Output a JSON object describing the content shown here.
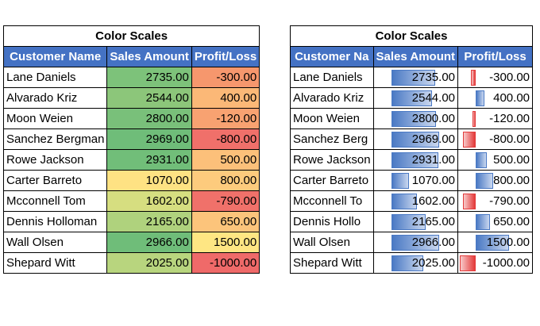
{
  "left_table": {
    "title": "Color Scales",
    "headers": [
      "Customer Name",
      "Sales Amount",
      "Profit/Loss"
    ],
    "rows": [
      {
        "name": "Lane Daniels",
        "sales": "2735.00",
        "profit": "-300.00",
        "sales_color": "#7dc27a",
        "profit_color": "#f6976d"
      },
      {
        "name": "Alvarado Kriz",
        "sales": "2544.00",
        "profit": "400.00",
        "sales_color": "#8cc67a",
        "profit_color": "#fbb877"
      },
      {
        "name": "Moon Weien",
        "sales": "2800.00",
        "profit": "-120.00",
        "sales_color": "#79c07a",
        "profit_color": "#f8a271"
      },
      {
        "name": "Sanchez Bergman",
        "sales": "2969.00",
        "profit": "-800.00",
        "sales_color": "#6fbd79",
        "profit_color": "#f0706a"
      },
      {
        "name": "Rowe Jackson",
        "sales": "2931.00",
        "profit": "500.00",
        "sales_color": "#71be79",
        "profit_color": "#fcc07a"
      },
      {
        "name": "Carter Barreto",
        "sales": "1070.00",
        "profit": "800.00",
        "sales_color": "#fee283",
        "profit_color": "#fdcb7d"
      },
      {
        "name": "Mcconnell Tom",
        "sales": "1602.00",
        "profit": "-790.00",
        "sales_color": "#d6de80",
        "profit_color": "#f0716a"
      },
      {
        "name": "Dennis Holloman",
        "sales": "2165.00",
        "profit": "650.00",
        "sales_color": "#afd27d",
        "profit_color": "#fcc47b"
      },
      {
        "name": "Wall Olsen",
        "sales": "2966.00",
        "profit": "1500.00",
        "sales_color": "#6fbd79",
        "profit_color": "#fee683"
      },
      {
        "name": "Shepard Witt",
        "sales": "2025.00",
        "profit": "-1000.00",
        "sales_color": "#b8d57e",
        "profit_color": "#ef6a69"
      }
    ]
  },
  "right_table": {
    "title": "Color Scales",
    "headers": [
      "Customer Na",
      "Sales Amount",
      "Profit/Loss"
    ],
    "rows": [
      {
        "name": "Lane Daniels",
        "sales": "2735.00",
        "profit": "-300.00",
        "sales_fill": 0.88,
        "profit_fill": -0.3
      },
      {
        "name": "Alvarado Kriz",
        "sales": "2544.00",
        "profit": "400.00",
        "sales_fill": 0.82,
        "profit_fill": 0.27
      },
      {
        "name": "Moon Weien",
        "sales": "2800.00",
        "profit": "-120.00",
        "sales_fill": 0.9,
        "profit_fill": -0.12
      },
      {
        "name": "Sanchez Berg",
        "sales": "2969.00",
        "profit": "-800.00",
        "sales_fill": 0.96,
        "profit_fill": -0.8
      },
      {
        "name": "Rowe Jackson",
        "sales": "2931.00",
        "profit": "500.00",
        "sales_fill": 0.95,
        "profit_fill": 0.33
      },
      {
        "name": "Carter Barreto",
        "sales": "1070.00",
        "profit": "800.00",
        "sales_fill": 0.35,
        "profit_fill": 0.53
      },
      {
        "name": "Mcconnell To",
        "sales": "1602.00",
        "profit": "-790.00",
        "sales_fill": 0.52,
        "profit_fill": -0.79
      },
      {
        "name": "Dennis Hollo",
        "sales": "2165.00",
        "profit": "650.00",
        "sales_fill": 0.7,
        "profit_fill": 0.43
      },
      {
        "name": "Wall Olsen",
        "sales": "2966.00",
        "profit": "1500.00",
        "sales_fill": 0.96,
        "profit_fill": 1.0
      },
      {
        "name": "Shepard Witt",
        "sales": "2025.00",
        "profit": "-1000.00",
        "sales_fill": 0.65,
        "profit_fill": -1.0
      }
    ]
  },
  "colors": {
    "header_bg": "#4472C4",
    "header_text": "#ffffff",
    "bar_positive": "#4a79c4",
    "bar_negative": "#e33b3b"
  }
}
